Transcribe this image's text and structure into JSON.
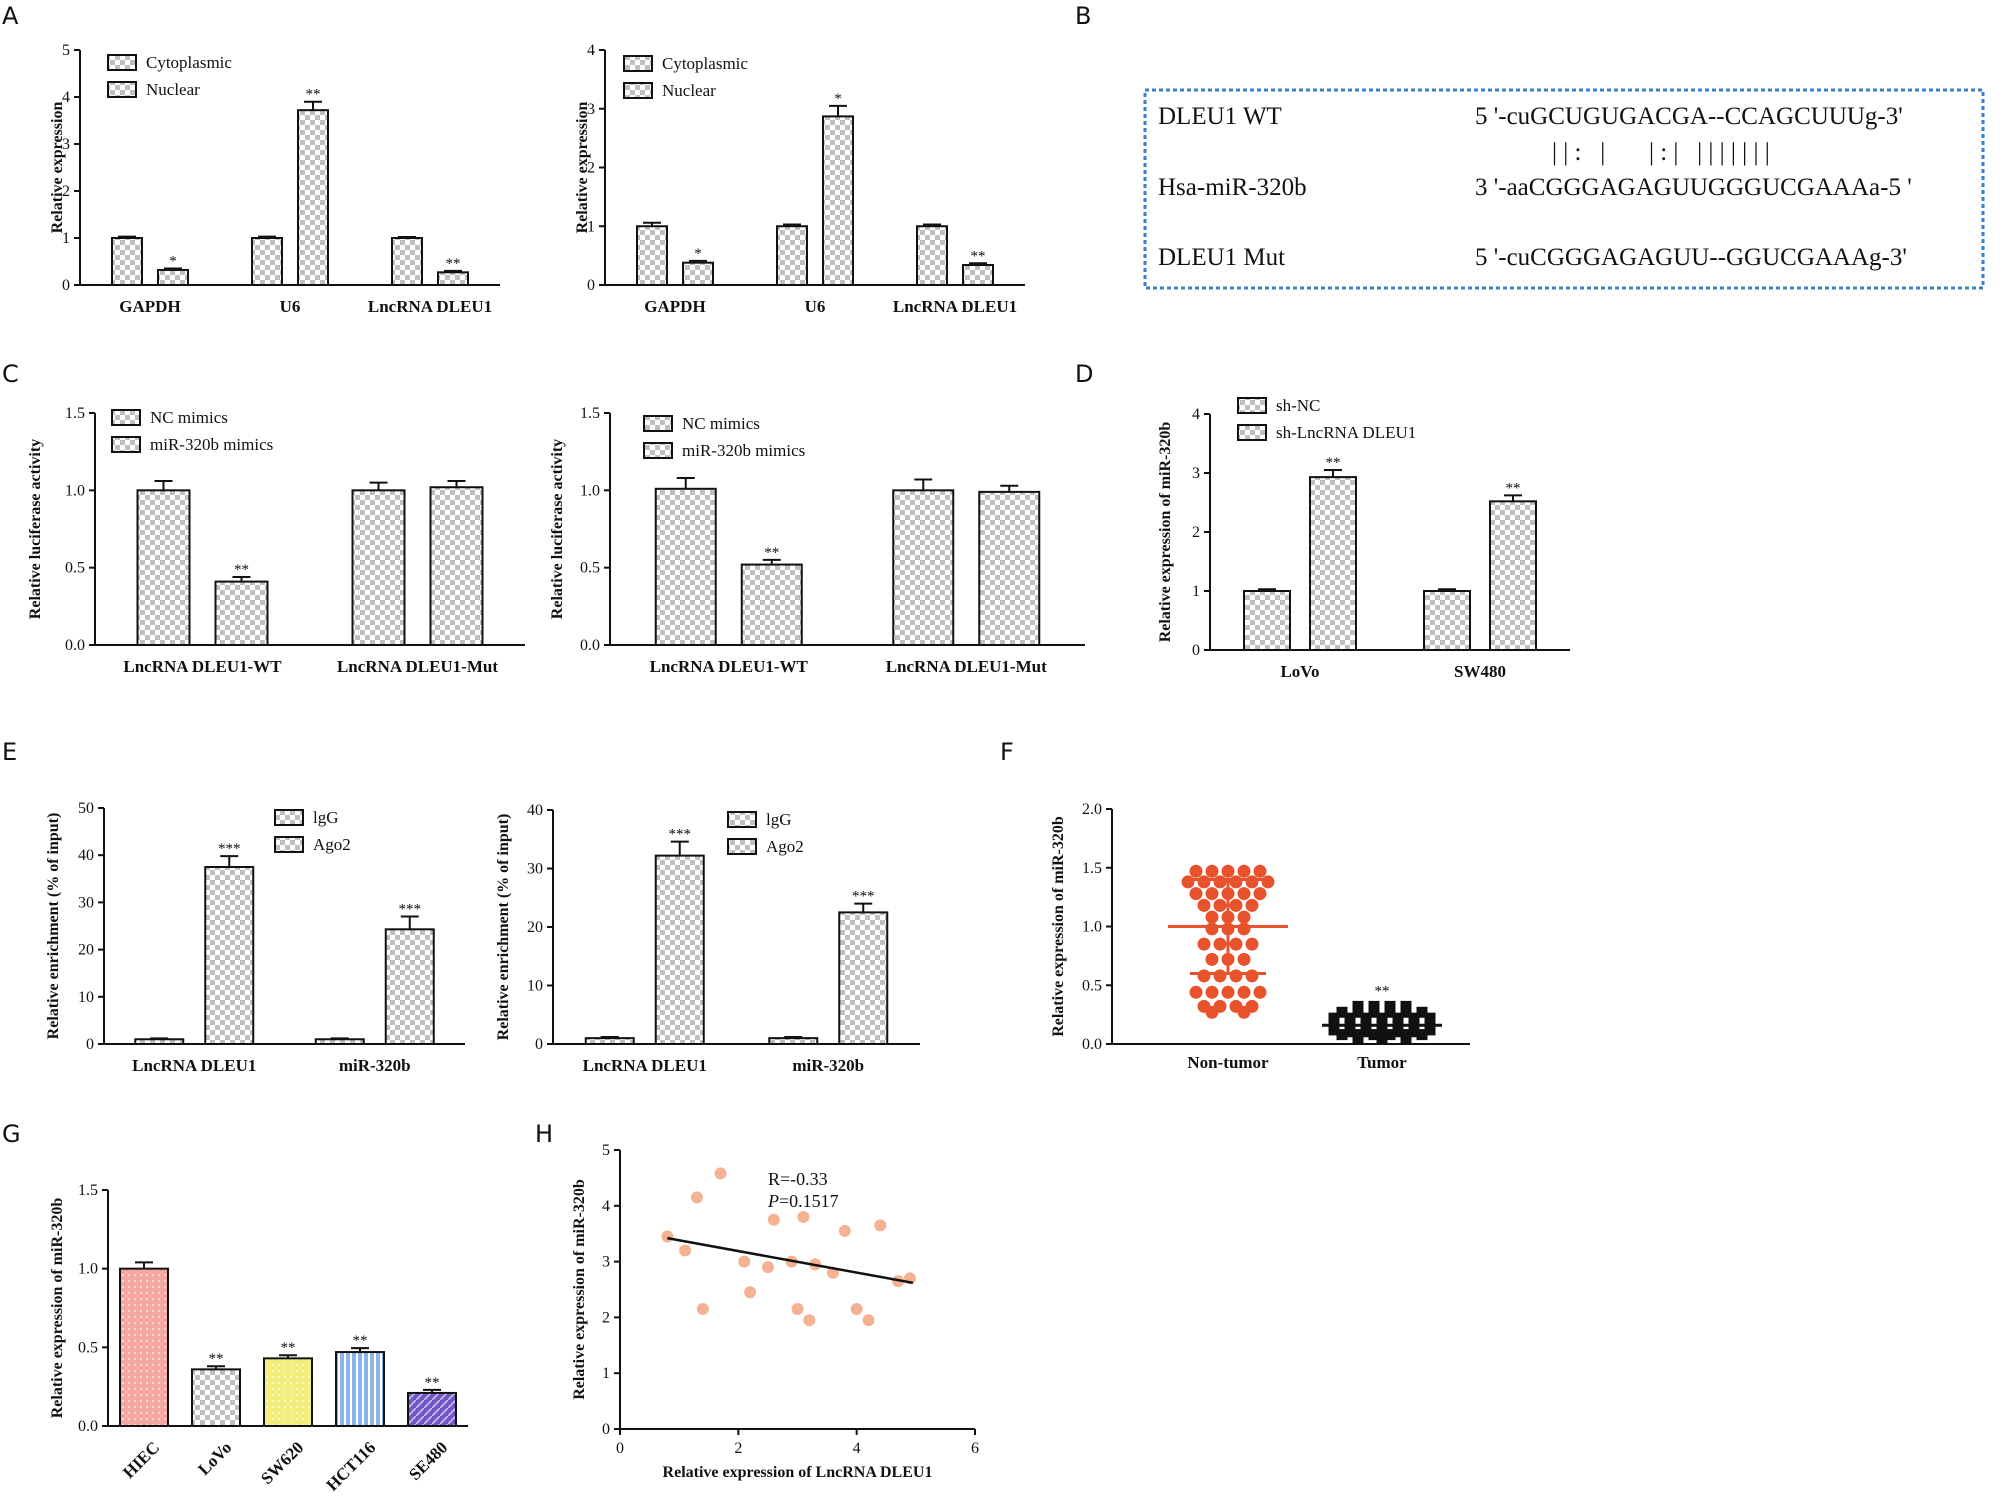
{
  "panels": {
    "A": "A",
    "B": "B",
    "C": "C",
    "D": "D",
    "E": "E",
    "F": "F",
    "G": "G",
    "H": "H"
  },
  "colors": {
    "cytoplasmic": "#eef7cf",
    "nuclear": "#f7bd80",
    "nc_mimics": "#f3b469",
    "mir_mimics": "#e8524a",
    "sh_nc": "#f6ea4c",
    "sh_lnc": "#3bb0cf",
    "igg": "#a9cbe8",
    "ago2": "#8f86cf",
    "scatter_nontumor": "#e8522c",
    "scatter_tumor": "#111111",
    "g_hiec": "#f6a6a0",
    "g_lovo": "#f0a030",
    "g_sw620": "#f1ee7e",
    "g_hct116": "#8cb6ea",
    "g_se480": "#6f55c7",
    "h_points": "#f4b293",
    "seq_box": "#3a7fc8"
  },
  "sequences": {
    "rows": [
      {
        "label": "DLEU1 WT",
        "seq": "5 '-cuGCUGUGACGA--CCAGCUUUg-3'"
      },
      {
        "label": "Hsa-miR-320b",
        "seq": "3 '-aaCGGGAGAGUUGGGUCGAAAa-5 '"
      },
      {
        "label": "DLEU1 Mut",
        "seq": "5 '-cuCGGGAGAGUU--GGUCGAAAg-3'"
      }
    ],
    "pairing": "| | :   |       | : |   | | | | | | |"
  },
  "chart_data": [
    {
      "id": "A1",
      "panel": "A",
      "type": "bar",
      "ylabel": "Relative expression",
      "ylim": [
        0,
        5
      ],
      "yticks": [
        "0",
        "1",
        "2",
        "3",
        "4",
        "5"
      ],
      "categories": [
        "GAPDH",
        "U6",
        "LncRNA DLEU1"
      ],
      "series": [
        {
          "name": "Cytoplasmic",
          "values": [
            1.0,
            1.0,
            1.0
          ],
          "errors": [
            0.03,
            0.03,
            0.02
          ],
          "sig": [
            "",
            "",
            ""
          ]
        },
        {
          "name": "Nuclear",
          "values": [
            0.32,
            3.72,
            0.27
          ],
          "errors": [
            0.03,
            0.18,
            0.03
          ],
          "sig": [
            "*",
            "**",
            "**"
          ]
        }
      ]
    },
    {
      "id": "A2",
      "panel": "A",
      "type": "bar",
      "ylabel": "Relative expression",
      "ylim": [
        0,
        4
      ],
      "yticks": [
        "0",
        "1",
        "2",
        "3",
        "4"
      ],
      "categories": [
        "GAPDH",
        "U6",
        "LncRNA DLEU1"
      ],
      "series": [
        {
          "name": "Cytoplasmic",
          "values": [
            1.0,
            1.0,
            1.0
          ],
          "errors": [
            0.06,
            0.03,
            0.03
          ],
          "sig": [
            "",
            "",
            ""
          ]
        },
        {
          "name": "Nuclear",
          "values": [
            0.38,
            2.87,
            0.34
          ],
          "errors": [
            0.03,
            0.18,
            0.03
          ],
          "sig": [
            "*",
            "*",
            "**"
          ]
        }
      ]
    },
    {
      "id": "C1",
      "panel": "C",
      "type": "bar",
      "ylabel": "Relative luciferase activity",
      "ylim": [
        0,
        1.5
      ],
      "yticks": [
        "0.0",
        "0.5",
        "1.0",
        "1.5"
      ],
      "categories": [
        "LncRNA DLEU1-WT",
        "LncRNA DLEU1-Mut"
      ],
      "series": [
        {
          "name": "NC mimics",
          "values": [
            1.0,
            1.0
          ],
          "errors": [
            0.06,
            0.05
          ],
          "sig": [
            "",
            ""
          ]
        },
        {
          "name": "miR-320b mimics",
          "values": [
            0.41,
            1.02
          ],
          "errors": [
            0.03,
            0.04
          ],
          "sig": [
            "**",
            ""
          ]
        }
      ]
    },
    {
      "id": "C2",
      "panel": "C",
      "type": "bar",
      "ylabel": "Relative luciferase activity",
      "ylim": [
        0,
        1.5
      ],
      "yticks": [
        "0.0",
        "0.5",
        "1.0",
        "1.5"
      ],
      "categories": [
        "LncRNA DLEU1-WT",
        "LncRNA DLEU1-Mut"
      ],
      "series": [
        {
          "name": "NC mimics",
          "values": [
            1.01,
            1.0
          ],
          "errors": [
            0.07,
            0.07
          ],
          "sig": [
            "",
            ""
          ]
        },
        {
          "name": "miR-320b mimics",
          "values": [
            0.52,
            0.99
          ],
          "errors": [
            0.03,
            0.04
          ],
          "sig": [
            "**",
            ""
          ]
        }
      ]
    },
    {
      "id": "D",
      "panel": "D",
      "type": "bar",
      "ylabel": "Relative expression of miR-320b",
      "ylim": [
        0,
        4
      ],
      "yticks": [
        "0",
        "1",
        "2",
        "3",
        "4"
      ],
      "categories": [
        "LoVo",
        "SW480"
      ],
      "series": [
        {
          "name": "sh-NC",
          "values": [
            1.0,
            1.0
          ],
          "errors": [
            0.03,
            0.03
          ],
          "sig": [
            "",
            ""
          ]
        },
        {
          "name": "sh-LncRNA DLEU1",
          "values": [
            2.93,
            2.52
          ],
          "errors": [
            0.12,
            0.1
          ],
          "sig": [
            "**",
            "**"
          ]
        }
      ]
    },
    {
      "id": "E1",
      "panel": "E",
      "type": "bar",
      "ylabel": "Relative enrichment (% of input)",
      "ylim": [
        0,
        50
      ],
      "yticks": [
        "0",
        "10",
        "20",
        "30",
        "40",
        "50"
      ],
      "categories": [
        "LncRNA DLEU1",
        "miR-320b"
      ],
      "series": [
        {
          "name": "lgG",
          "values": [
            1.0,
            1.0
          ],
          "errors": [
            0.2,
            0.2
          ],
          "sig": [
            "",
            ""
          ]
        },
        {
          "name": "Ago2",
          "values": [
            37.5,
            24.3
          ],
          "errors": [
            2.3,
            2.7
          ],
          "sig": [
            "***",
            "***"
          ]
        }
      ]
    },
    {
      "id": "E2",
      "panel": "E",
      "type": "bar",
      "ylabel": "Relative enrichment (% of input)",
      "ylim": [
        0,
        40
      ],
      "yticks": [
        "0",
        "10",
        "20",
        "30",
        "40"
      ],
      "categories": [
        "LncRNA DLEU1",
        "miR-320b"
      ],
      "series": [
        {
          "name": "lgG",
          "values": [
            1.0,
            1.0
          ],
          "errors": [
            0.2,
            0.2
          ],
          "sig": [
            "",
            ""
          ]
        },
        {
          "name": "Ago2",
          "values": [
            32.2,
            22.5
          ],
          "errors": [
            2.4,
            1.5
          ],
          "sig": [
            "***",
            "***"
          ]
        }
      ]
    },
    {
      "id": "F",
      "panel": "F",
      "type": "scatter",
      "ylabel": "Relative expression of miR-320b",
      "ylim": [
        0,
        2.0
      ],
      "yticks": [
        "0.0",
        "0.5",
        "1.0",
        "1.5",
        "2.0"
      ],
      "categories": [
        "Non-tumor",
        "Tumor"
      ],
      "groups": [
        {
          "name": "Non-tumor",
          "mean": 1.0,
          "sd": 0.4,
          "sig": "",
          "points": [
            [
              -4,
              1.47
            ],
            [
              -2,
              1.47
            ],
            [
              0,
              1.47
            ],
            [
              2,
              1.47
            ],
            [
              4,
              1.47
            ],
            [
              -5,
              1.38
            ],
            [
              -3,
              1.38
            ],
            [
              -1,
              1.38
            ],
            [
              1,
              1.38
            ],
            [
              3,
              1.38
            ],
            [
              5,
              1.38
            ],
            [
              -4,
              1.28
            ],
            [
              -2,
              1.28
            ],
            [
              0,
              1.28
            ],
            [
              2,
              1.28
            ],
            [
              4,
              1.28
            ],
            [
              -3,
              1.18
            ],
            [
              -1,
              1.18
            ],
            [
              1,
              1.18
            ],
            [
              3,
              1.18
            ],
            [
              -2,
              1.08
            ],
            [
              0,
              1.08
            ],
            [
              2,
              1.08
            ],
            [
              -2,
              0.98
            ],
            [
              0,
              0.98
            ],
            [
              2,
              0.98
            ],
            [
              -3,
              0.85
            ],
            [
              -1,
              0.85
            ],
            [
              1,
              0.85
            ],
            [
              3,
              0.85
            ],
            [
              -2,
              0.72
            ],
            [
              0,
              0.72
            ],
            [
              2,
              0.72
            ],
            [
              -3,
              0.58
            ],
            [
              -1,
              0.58
            ],
            [
              1,
              0.58
            ],
            [
              3,
              0.58
            ],
            [
              -4,
              0.44
            ],
            [
              -2,
              0.44
            ],
            [
              0,
              0.44
            ],
            [
              2,
              0.44
            ],
            [
              4,
              0.44
            ],
            [
              -3,
              0.32
            ],
            [
              -1,
              0.32
            ],
            [
              1,
              0.32
            ],
            [
              3,
              0.32
            ],
            [
              -2,
              0.27
            ],
            [
              2,
              0.27
            ]
          ]
        },
        {
          "name": "Tumor",
          "mean": 0.16,
          "sd": 0.09,
          "sig": "**",
          "points": [
            [
              -3,
              0.32
            ],
            [
              -1,
              0.32
            ],
            [
              1,
              0.32
            ],
            [
              3,
              0.32
            ],
            [
              -5,
              0.27
            ],
            [
              -3,
              0.27
            ],
            [
              -1,
              0.27
            ],
            [
              1,
              0.27
            ],
            [
              3,
              0.27
            ],
            [
              5,
              0.27
            ],
            [
              -6,
              0.22
            ],
            [
              -4,
              0.22
            ],
            [
              -2,
              0.22
            ],
            [
              0,
              0.22
            ],
            [
              2,
              0.22
            ],
            [
              4,
              0.22
            ],
            [
              6,
              0.22
            ],
            [
              -6,
              0.17
            ],
            [
              -4,
              0.17
            ],
            [
              -2,
              0.17
            ],
            [
              0,
              0.17
            ],
            [
              2,
              0.17
            ],
            [
              4,
              0.17
            ],
            [
              6,
              0.17
            ],
            [
              -6,
              0.12
            ],
            [
              -4,
              0.12
            ],
            [
              -2,
              0.12
            ],
            [
              0,
              0.12
            ],
            [
              2,
              0.12
            ],
            [
              4,
              0.12
            ],
            [
              6,
              0.12
            ],
            [
              -5,
              0.08
            ],
            [
              -3,
              0.08
            ],
            [
              -1,
              0.08
            ],
            [
              1,
              0.08
            ],
            [
              3,
              0.08
            ],
            [
              5,
              0.08
            ],
            [
              -3,
              0.05
            ],
            [
              0,
              0.05
            ],
            [
              3,
              0.05
            ]
          ]
        }
      ]
    },
    {
      "id": "G",
      "panel": "G",
      "type": "bar",
      "ylabel": "Relative expression of miR-320b",
      "ylim": [
        0,
        1.5
      ],
      "yticks": [
        "0.0",
        "0.5",
        "1.0",
        "1.5"
      ],
      "categories": [
        "HIEC",
        "LoVo",
        "SW620",
        "HCT116",
        "SE480"
      ],
      "values": [
        1.0,
        0.36,
        0.43,
        0.47,
        0.21
      ],
      "errors": [
        0.04,
        0.02,
        0.02,
        0.025,
        0.02
      ],
      "sig": [
        "",
        "**",
        "**",
        "**",
        "**"
      ]
    },
    {
      "id": "H",
      "panel": "H",
      "type": "scatter",
      "xlabel": "Relative expression of LncRNA DLEU1",
      "ylabel": "Relative expression of miR-320b",
      "xlim": [
        0,
        6
      ],
      "ylim": [
        0,
        5
      ],
      "xticks": [
        "0",
        "2",
        "4",
        "6"
      ],
      "yticks": [
        "0",
        "1",
        "2",
        "3",
        "4",
        "5"
      ],
      "r_label": "R=-0.33",
      "p_label": "P",
      "p_value": "=0.1517",
      "points": [
        [
          0.8,
          3.45
        ],
        [
          1.1,
          3.2
        ],
        [
          1.3,
          4.15
        ],
        [
          1.4,
          2.15
        ],
        [
          1.7,
          4.58
        ],
        [
          2.1,
          3.0
        ],
        [
          2.2,
          2.45
        ],
        [
          2.5,
          2.9
        ],
        [
          2.6,
          3.75
        ],
        [
          2.9,
          3.0
        ],
        [
          3.0,
          2.15
        ],
        [
          3.1,
          3.8
        ],
        [
          3.2,
          1.95
        ],
        [
          3.3,
          2.95
        ],
        [
          3.6,
          2.8
        ],
        [
          3.8,
          3.55
        ],
        [
          4.0,
          2.15
        ],
        [
          4.2,
          1.95
        ],
        [
          4.4,
          3.65
        ],
        [
          4.7,
          2.65
        ],
        [
          4.9,
          2.7
        ]
      ],
      "fit": [
        [
          0.8,
          3.42
        ],
        [
          4.95,
          2.62
        ]
      ]
    }
  ]
}
